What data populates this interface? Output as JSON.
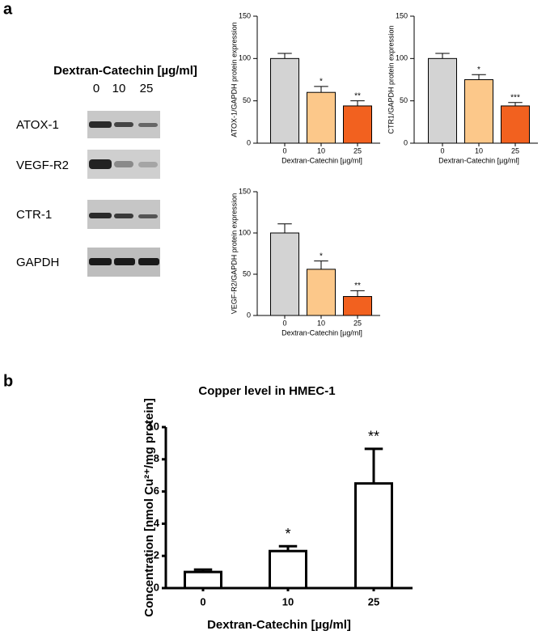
{
  "panels": [
    "a",
    "b"
  ],
  "blot": {
    "title": "Dextran-Catechin [µg/ml]",
    "lanes": [
      "0",
      "10",
      "25"
    ],
    "rows": [
      "ATOX-1",
      "VEGF-R2",
      "CTR-1",
      "GAPDH"
    ]
  },
  "chart_data": [
    {
      "type": "bar",
      "ylabel": "ATOX-1/GAPDH protein expression",
      "xlabel": "Dextran-Catechin [µg/ml]",
      "categories": [
        "0",
        "10",
        "25"
      ],
      "values": [
        100,
        60,
        44
      ],
      "errors": [
        6,
        7,
        6
      ],
      "significance": [
        null,
        "*",
        "**"
      ],
      "colors": [
        "#d3d3d3",
        "#fcc88a",
        "#f2611f"
      ],
      "ylim": [
        0,
        150
      ],
      "yticks": [
        0,
        50,
        100,
        150
      ]
    },
    {
      "type": "bar",
      "ylabel": "CTR1/GAPDH protein expression",
      "xlabel": "Dextran-Catechin [µg/ml]",
      "categories": [
        "0",
        "10",
        "25"
      ],
      "values": [
        100,
        75,
        44
      ],
      "errors": [
        6,
        6,
        4
      ],
      "significance": [
        null,
        "*",
        "***"
      ],
      "colors": [
        "#d3d3d3",
        "#fcc88a",
        "#f2611f"
      ],
      "ylim": [
        0,
        150
      ],
      "yticks": [
        0,
        50,
        100,
        150
      ]
    },
    {
      "type": "bar",
      "ylabel": "VEGF-R2/GAPDH protein expression",
      "xlabel": "Dextran-Catechin [µg/ml]",
      "categories": [
        "0",
        "10",
        "25"
      ],
      "values": [
        100,
        56,
        23
      ],
      "errors": [
        11,
        10,
        7
      ],
      "significance": [
        null,
        "*",
        "**"
      ],
      "colors": [
        "#d3d3d3",
        "#fcc88a",
        "#f2611f"
      ],
      "ylim": [
        0,
        150
      ],
      "yticks": [
        0,
        50,
        100,
        150
      ]
    },
    {
      "type": "bar",
      "title": "Copper level in HMEC-1",
      "ylabel": "Concentration [nmol Cu²⁺/mg protein]",
      "xlabel": "Dextran-Catechin [µg/ml]",
      "categories": [
        "0",
        "10",
        "25"
      ],
      "values": [
        1.0,
        2.3,
        6.5
      ],
      "errors": [
        0.15,
        0.3,
        2.15
      ],
      "significance": [
        null,
        "*",
        "**"
      ],
      "colors": [
        "#ffffff",
        "#ffffff",
        "#ffffff"
      ],
      "ylim": [
        0,
        10
      ],
      "yticks": [
        0,
        2,
        4,
        6,
        8,
        10
      ]
    }
  ]
}
